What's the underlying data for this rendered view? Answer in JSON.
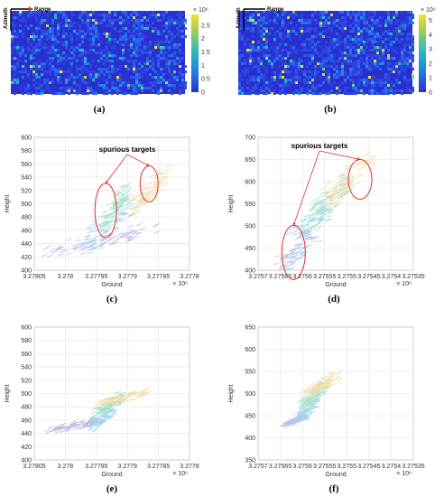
{
  "figure": {
    "captions": [
      "(a)",
      "(b)",
      "(c)",
      "(d)",
      "(e)",
      "(f)"
    ]
  },
  "chart_data": [
    {
      "id": "a",
      "type": "heatmap",
      "axis_labels": {
        "range": "Range",
        "azimuth": "Azimuth"
      },
      "colorbar": {
        "ticks": [
          0,
          0.5,
          1,
          1.5,
          2,
          2.5
        ],
        "exponent": "× 10⁶",
        "range": [
          0,
          2.9
        ]
      },
      "colors": {
        "low": "#2a2fd0",
        "mid": "#27b5c8",
        "high": "#f5e02a"
      }
    },
    {
      "id": "b",
      "type": "heatmap",
      "axis_labels": {
        "range": "Range",
        "azimuth": "Azimuth"
      },
      "colorbar": {
        "ticks": [
          0,
          1,
          2,
          3,
          4,
          5
        ],
        "exponent": "× 10⁶",
        "range": [
          0,
          5.4
        ]
      },
      "colors": {
        "low": "#2a2fd0",
        "mid": "#27b5c8",
        "high": "#f5e02a"
      }
    },
    {
      "id": "c",
      "type": "scatter",
      "xlabel": "Ground",
      "ylabel": "Height",
      "x_exponent": "× 10⁶",
      "xlim": [
        3.27805,
        3.2778
      ],
      "ylim": [
        400,
        600
      ],
      "x_ticks": [
        3.27805,
        3.278,
        3.27795,
        3.2779,
        3.27785,
        3.2778
      ],
      "x_tick_labels": [
        "3.27805",
        "3.278",
        "3.27795",
        "3.2779",
        "3.27785",
        "3.2778"
      ],
      "y_ticks": [
        400,
        420,
        440,
        460,
        480,
        500,
        520,
        540,
        560,
        580,
        600
      ],
      "grid": true,
      "annotation": "spurious targets",
      "highlighted_regions": [
        {
          "x_center": 3.277935,
          "y_center": 490
        },
        {
          "x_center": 3.277865,
          "y_center": 530
        }
      ],
      "point_clusters": [
        {
          "x": [
            3.27802,
            3.27787
          ],
          "y": [
            425,
            460
          ],
          "color": "#b7b7e6"
        },
        {
          "x": [
            3.27797,
            3.27789
          ],
          "y": [
            440,
            500
          ],
          "color": "#9ed6ea"
        },
        {
          "x": [
            3.27794,
            3.2779
          ],
          "y": [
            470,
            520
          ],
          "color": "#a6e2c8"
        },
        {
          "x": [
            3.27789,
            3.27784
          ],
          "y": [
            495,
            545
          ],
          "color": "#f4dda6"
        }
      ]
    },
    {
      "id": "d",
      "type": "scatter",
      "xlabel": "Ground",
      "ylabel": "Height",
      "x_exponent": "× 10⁶",
      "xlim": [
        3.2757,
        3.27535
      ],
      "ylim": [
        400,
        700
      ],
      "x_ticks": [
        3.2757,
        3.27565,
        3.2756,
        3.27555,
        3.2755,
        3.27545,
        3.2754,
        3.27535
      ],
      "x_tick_labels": [
        "3.2757",
        "3.27565",
        "3.2756",
        "3.27555",
        "3.2755",
        "3.27545",
        "3.2754",
        "3.27535"
      ],
      "y_ticks": [
        400,
        450,
        500,
        550,
        600,
        650,
        700
      ],
      "grid": true,
      "annotation": "spurious targets",
      "highlighted_regions": [
        {
          "x_center": 3.27562,
          "y_center": 440
        },
        {
          "x_center": 3.27547,
          "y_center": 605
        }
      ],
      "point_clusters": [
        {
          "x": [
            3.27565,
            3.27557
          ],
          "y": [
            405,
            490
          ],
          "color": "#b7c4ea"
        },
        {
          "x": [
            3.27562,
            3.27553
          ],
          "y": [
            460,
            560
          ],
          "color": "#9ed6ea"
        },
        {
          "x": [
            3.27558,
            3.2755
          ],
          "y": [
            520,
            600
          ],
          "color": "#a6e2c8"
        },
        {
          "x": [
            3.27554,
            3.27545
          ],
          "y": [
            560,
            650
          ],
          "color": "#f4dda6"
        }
      ]
    },
    {
      "id": "e",
      "type": "scatter",
      "xlabel": "Ground",
      "ylabel": "Height",
      "x_exponent": "× 10⁶",
      "xlim": [
        3.27805,
        3.2778
      ],
      "ylim": [
        400,
        600
      ],
      "x_ticks": [
        3.27805,
        3.278,
        3.27795,
        3.2779,
        3.27785,
        3.2778
      ],
      "x_tick_labels": [
        "3.27805",
        "3.278",
        "3.27795",
        "3.2779",
        "3.27785",
        "3.2778"
      ],
      "y_ticks": [
        400,
        420,
        440,
        460,
        480,
        500,
        520,
        540,
        560,
        580,
        600
      ],
      "grid": true,
      "point_clusters": [
        {
          "x": [
            3.27802,
            3.27794
          ],
          "y": [
            445,
            460
          ],
          "color": "#b7b7e6"
        },
        {
          "x": [
            3.27796,
            3.27792
          ],
          "y": [
            450,
            480
          ],
          "color": "#9ed6ea"
        },
        {
          "x": [
            3.27795,
            3.27791
          ],
          "y": [
            470,
            495
          ],
          "color": "#a6e2c8"
        },
        {
          "x": [
            3.27794,
            3.27787
          ],
          "y": [
            485,
            502
          ],
          "color": "#f4dda6"
        }
      ]
    },
    {
      "id": "f",
      "type": "scatter",
      "xlabel": "Ground",
      "ylabel": "Height",
      "x_exponent": "× 10⁶",
      "xlim": [
        3.2757,
        3.27535
      ],
      "ylim": [
        350,
        650
      ],
      "x_ticks": [
        3.2757,
        3.27565,
        3.2756,
        3.27555,
        3.2755,
        3.27545,
        3.2754,
        3.27535
      ],
      "x_tick_labels": [
        "3.2757",
        "3.27565",
        "3.2756",
        "3.27555",
        "3.2755",
        "3.27545",
        "3.2754",
        "3.27535"
      ],
      "y_ticks": [
        350,
        400,
        450,
        500,
        550,
        600,
        650
      ],
      "grid": true,
      "point_clusters": [
        {
          "x": [
            3.27564,
            3.27559
          ],
          "y": [
            430,
            450
          ],
          "color": "#b7c4ea"
        },
        {
          "x": [
            3.27561,
            3.27556
          ],
          "y": [
            440,
            500
          ],
          "color": "#9ed6ea"
        },
        {
          "x": [
            3.2756,
            3.27555
          ],
          "y": [
            470,
            520
          ],
          "color": "#a6e2c8"
        },
        {
          "x": [
            3.27559,
            3.27552
          ],
          "y": [
            500,
            540
          ],
          "color": "#f4dda6"
        }
      ]
    }
  ]
}
